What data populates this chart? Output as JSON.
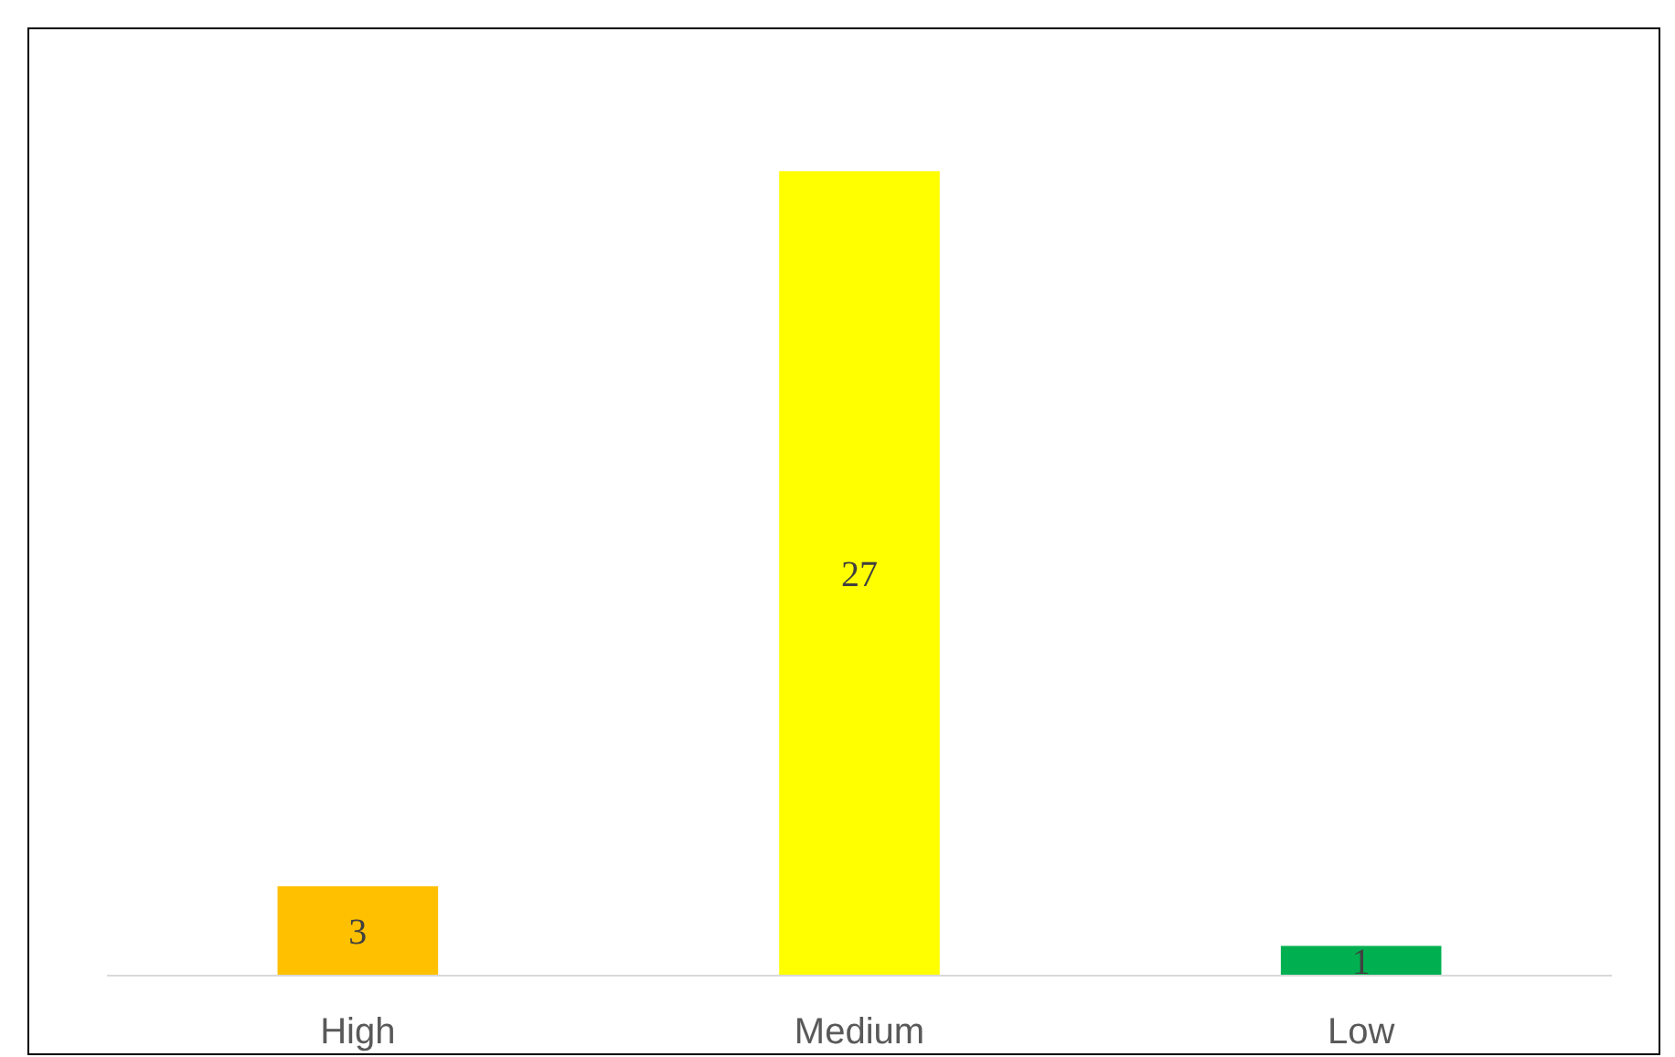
{
  "chart_data": {
    "type": "bar",
    "categories": [
      "High",
      "Medium",
      "Low"
    ],
    "values": [
      3,
      27,
      1
    ],
    "colors": [
      "#ffc000",
      "#ffff00",
      "#00b050"
    ],
    "data_labels": true
  }
}
